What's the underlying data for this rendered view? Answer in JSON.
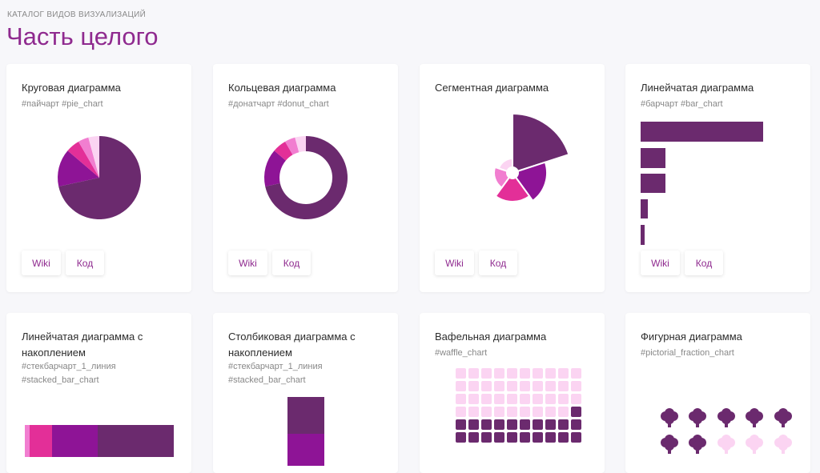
{
  "header": {
    "kicker": "КАТАЛОГ ВИДОВ ВИЗУАЛИЗАЦИЙ",
    "title": "Часть целого"
  },
  "colors": {
    "dark": "#6b2a6e",
    "purple": "#8e1496",
    "magenta": "#e32f98",
    "pink": "#f17ed0",
    "light_pink": "#fbd4f2",
    "accent_text": "#8f2a8f"
  },
  "buttons": {
    "wiki": "Wiki",
    "code": "Код"
  },
  "cards": [
    {
      "title": "Круговая диаграмма",
      "tags": "#пайчарт #pie_chart",
      "icon": "pie-chart"
    },
    {
      "title": "Кольцевая диаграмма",
      "tags": "#донатчарт #donut_chart",
      "icon": "donut-chart"
    },
    {
      "title": "Сегментная диаграмма",
      "tags": "",
      "icon": "segment-chart"
    },
    {
      "title": "Линейчатая диаграмма",
      "tags": "#барчарт #bar_chart",
      "icon": "bar-chart"
    },
    {
      "title": "Линейчатая диаграмма с накоплением",
      "tags": "#стекбарчарт_1_линия #stacked_bar_chart",
      "icon": "stacked-bar-chart"
    },
    {
      "title": "Столбиковая диаграмма с накоплением",
      "tags": "#стекбарчарт_1_линия #stacked_bar_chart",
      "icon": "stacked-column-chart"
    },
    {
      "title": "Вафельная диаграмма",
      "tags": "#waffle_chart",
      "icon": "waffle-chart"
    },
    {
      "title": "Фигурная диаграмма",
      "tags": "#pictorial_fraction_chart",
      "icon": "pictorial-chart"
    }
  ]
}
